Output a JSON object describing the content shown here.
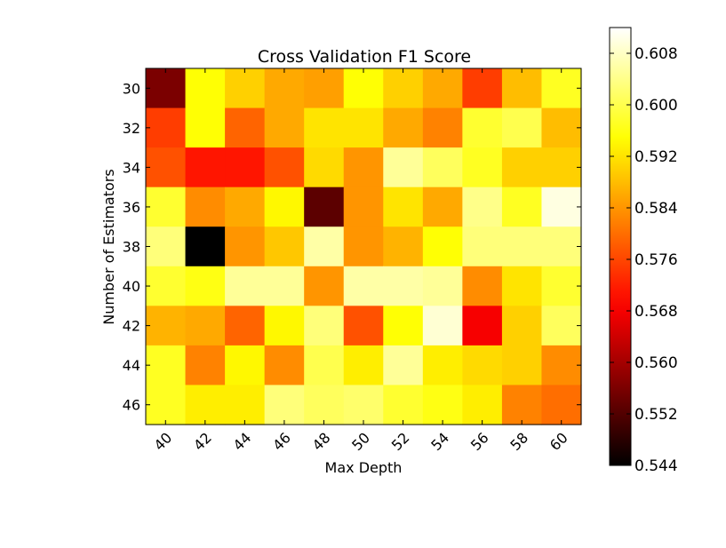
{
  "chart_data": {
    "type": "heatmap",
    "title": "Cross Validation F1 Score",
    "xlabel": "Max Depth",
    "ylabel": "Number of Estimators",
    "x_categories": [
      "40",
      "42",
      "44",
      "46",
      "48",
      "50",
      "52",
      "54",
      "56",
      "58",
      "60"
    ],
    "y_categories": [
      "30",
      "32",
      "34",
      "36",
      "38",
      "40",
      "42",
      "44",
      "46"
    ],
    "values": [
      [
        0.556,
        0.595,
        0.59,
        0.586,
        0.585,
        0.595,
        0.59,
        0.586,
        0.575,
        0.588,
        0.597
      ],
      [
        0.575,
        0.595,
        0.579,
        0.586,
        0.592,
        0.592,
        0.586,
        0.582,
        0.598,
        0.6,
        0.588
      ],
      [
        0.577,
        0.571,
        0.571,
        0.577,
        0.591,
        0.584,
        0.605,
        0.601,
        0.597,
        0.59,
        0.59
      ],
      [
        0.598,
        0.583,
        0.586,
        0.594,
        0.553,
        0.584,
        0.592,
        0.586,
        0.604,
        0.597,
        0.61
      ],
      [
        0.603,
        0.544,
        0.584,
        0.589,
        0.606,
        0.584,
        0.587,
        0.595,
        0.603,
        0.603,
        0.603
      ],
      [
        0.598,
        0.596,
        0.605,
        0.605,
        0.584,
        0.606,
        0.606,
        0.605,
        0.583,
        0.592,
        0.598
      ],
      [
        0.587,
        0.586,
        0.579,
        0.594,
        0.603,
        0.577,
        0.595,
        0.609,
        0.568,
        0.59,
        0.601
      ],
      [
        0.597,
        0.582,
        0.594,
        0.583,
        0.6,
        0.593,
        0.605,
        0.593,
        0.591,
        0.59,
        0.583
      ],
      [
        0.597,
        0.593,
        0.593,
        0.603,
        0.601,
        0.602,
        0.598,
        0.596,
        0.593,
        0.582,
        0.58
      ]
    ],
    "colormap": "hot",
    "color_range": [
      0.544,
      0.612
    ],
    "colorbar_ticks": [
      "0.544",
      "0.552",
      "0.560",
      "0.568",
      "0.576",
      "0.584",
      "0.592",
      "0.600",
      "0.608"
    ],
    "legend": "colorbar-right"
  }
}
